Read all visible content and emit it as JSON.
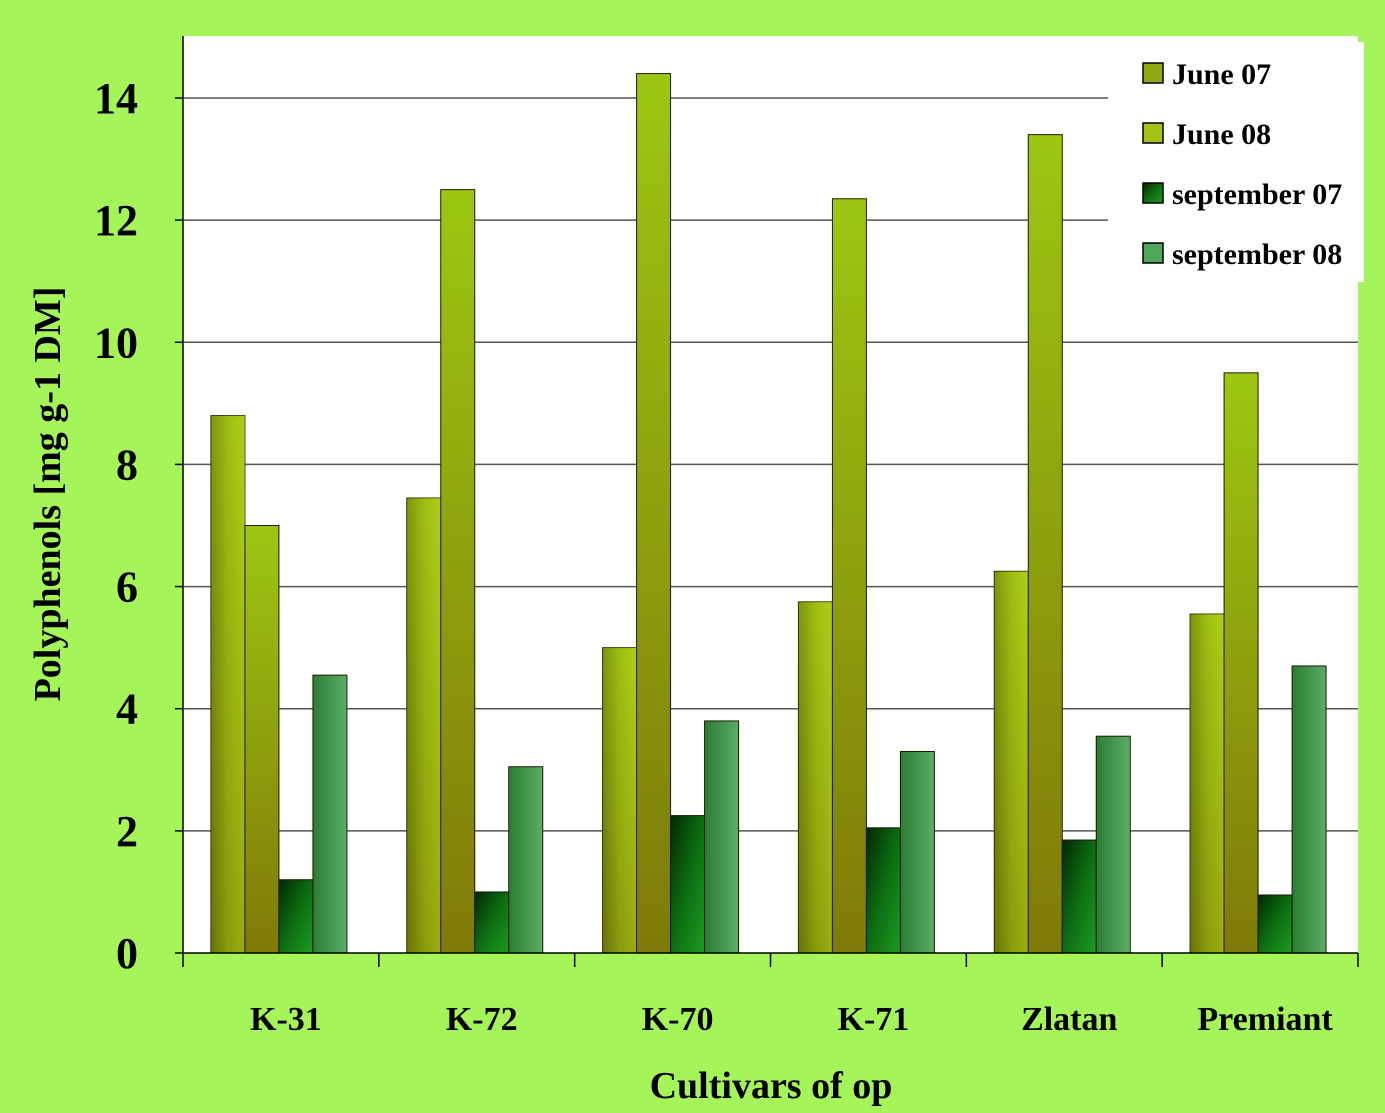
{
  "chart_data": {
    "type": "bar",
    "xlabel": "Cultivars of op",
    "ylabel": "Polyphenols [mg g-1 DM]",
    "ylim": [
      0,
      14
    ],
    "yticks": [
      0,
      2,
      4,
      6,
      8,
      10,
      12,
      14
    ],
    "grid": true,
    "legend_position": "top-right",
    "categories": [
      "K-31",
      "K-72",
      "K-70",
      "K-71",
      "Zlatan",
      "Premiant"
    ],
    "series": [
      {
        "name": "June 07",
        "color": "#8eaa10",
        "values": [
          8.8,
          7.45,
          5.0,
          5.75,
          6.25,
          5.55
        ]
      },
      {
        "name": "June 08",
        "color": "#a3c414",
        "values": [
          7.0,
          12.5,
          14.4,
          12.35,
          13.4,
          9.5
        ]
      },
      {
        "name": "september 07",
        "color": "#0a6a0a",
        "values": [
          1.2,
          1.0,
          2.25,
          2.05,
          1.85,
          0.95
        ]
      },
      {
        "name": "september 08",
        "color": "#3f9a4a",
        "values": [
          4.55,
          3.05,
          3.8,
          3.3,
          3.55,
          4.7
        ]
      }
    ]
  }
}
